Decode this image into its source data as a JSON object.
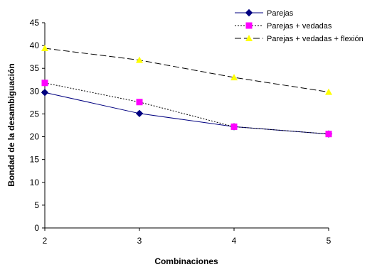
{
  "chart_data": {
    "type": "line",
    "x": [
      2,
      3,
      4,
      5
    ],
    "xlabel": "Combinaciones",
    "ylabel": "Bondad de la desambiguación",
    "xlim": [
      2,
      5
    ],
    "ylim": [
      0,
      45
    ],
    "yticks": [
      0,
      5,
      10,
      15,
      20,
      25,
      30,
      35,
      40,
      45
    ],
    "xticks": [
      2,
      3,
      4,
      5
    ],
    "grid": false,
    "legend": "top-right",
    "series": [
      {
        "name": "Parejas",
        "values": [
          29.7,
          25.1,
          22.2,
          20.6
        ],
        "color": "#000080",
        "line_style": "solid",
        "marker": "diamond",
        "marker_color": "#000080"
      },
      {
        "name": "Parejas + vedadas",
        "values": [
          31.8,
          27.6,
          22.2,
          20.6
        ],
        "color": "#000000",
        "line_style": "dotted",
        "marker": "square",
        "marker_color": "#ff00ff"
      },
      {
        "name": "Parejas + vedadas + flexión",
        "values": [
          39.4,
          36.8,
          33.0,
          29.8
        ],
        "color": "#000000",
        "line_style": "dashed",
        "marker": "triangle",
        "marker_color": "#ffff00"
      }
    ]
  }
}
